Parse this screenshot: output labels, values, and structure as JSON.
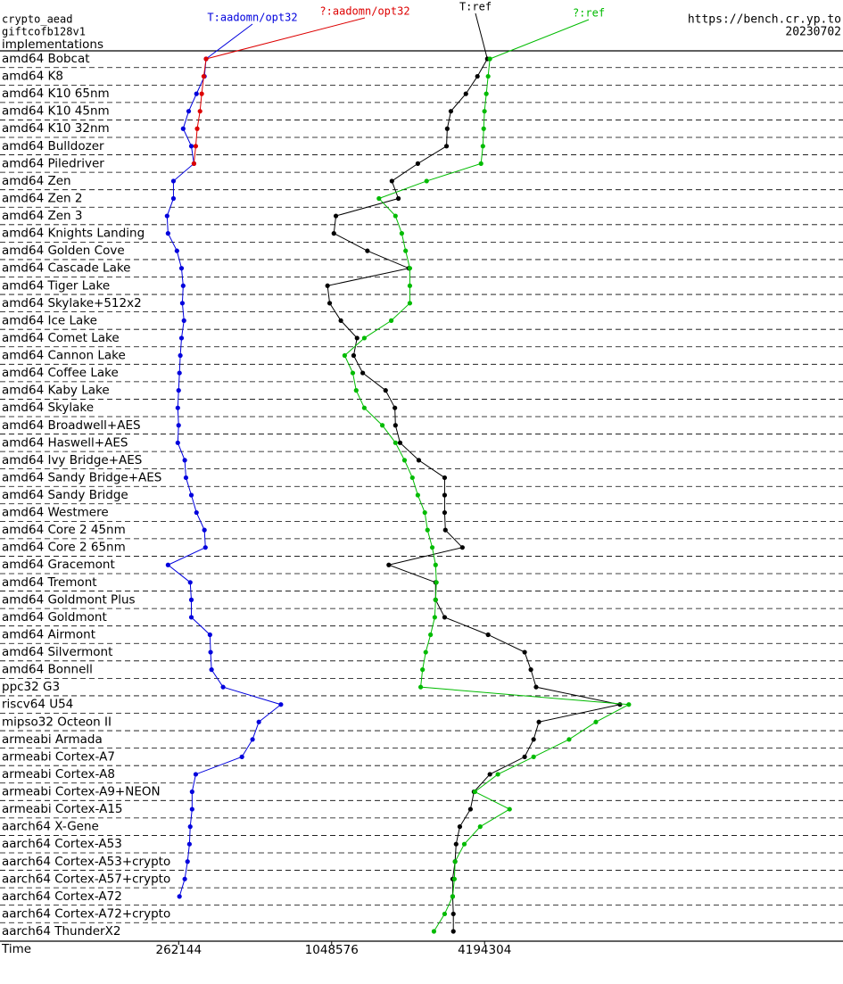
{
  "chart_data": {
    "type": "line",
    "title": "crypto_aead",
    "subtitle": "giftcofb128v1",
    "ylabel": "implementations",
    "xlabel": "Time",
    "source": "https://bench.cr.yp.to",
    "date": "20230702",
    "xscale": "log",
    "xlim": [
      51900,
      108000000
    ],
    "xticks": [
      262144,
      1048576,
      4194304
    ],
    "categories": [
      "amd64 Bobcat",
      "amd64 K8",
      "amd64 K10 65nm",
      "amd64 K10 45nm",
      "amd64 K10 32nm",
      "amd64 Bulldozer",
      "amd64 Piledriver",
      "amd64 Zen",
      "amd64 Zen 2",
      "amd64 Zen 3",
      "amd64 Knights Landing",
      "amd64 Golden Cove",
      "amd64 Cascade Lake",
      "amd64 Tiger Lake",
      "amd64 Skylake+512x2",
      "amd64 Ice Lake",
      "amd64 Comet Lake",
      "amd64 Cannon Lake",
      "amd64 Coffee Lake",
      "amd64 Kaby Lake",
      "amd64 Skylake",
      "amd64 Broadwell+AES",
      "amd64 Haswell+AES",
      "amd64 Ivy Bridge+AES",
      "amd64 Sandy Bridge+AES",
      "amd64 Sandy Bridge",
      "amd64 Westmere",
      "amd64 Core 2 45nm",
      "amd64 Core 2 65nm",
      "amd64 Gracemont",
      "amd64 Tremont",
      "amd64 Goldmont Plus",
      "amd64 Goldmont",
      "amd64 Airmont",
      "amd64 Silvermont",
      "amd64 Bonnell",
      "ppc32 G3",
      "riscv64 U54",
      "mipso32 Octeon II",
      "armeabi Armada",
      "armeabi Cortex-A7",
      "armeabi Cortex-A8",
      "armeabi Cortex-A9+NEON",
      "armeabi Cortex-A15",
      "aarch64 X-Gene",
      "aarch64 Cortex-A53",
      "aarch64 Cortex-A53+crypto",
      "aarch64 Cortex-A57+crypto",
      "aarch64 Cortex-A72",
      "aarch64 Cortex-A72+crypto",
      "aarch64 ThunderX2"
    ],
    "series": [
      {
        "name": "T:aadomn/opt32",
        "color": "#0000dd",
        "values": [
          336000,
          331000,
          308000,
          287000,
          273000,
          294000,
          301000,
          250000,
          250000,
          236000,
          238000,
          258000,
          269000,
          273000,
          271000,
          275000,
          269000,
          266000,
          264000,
          262000,
          260000,
          262000,
          260000,
          277000,
          280000,
          294000,
          308000,
          331000,
          334000,
          238000,
          291000,
          294000,
          294000,
          348000,
          350000,
          353000,
          392000,
          662000,
          542000,
          512000,
          465000,
          306000,
          296000,
          296000,
          291000,
          289000,
          284000,
          277000,
          264000,
          null,
          null
        ]
      },
      {
        "name": "?:aadomn/opt32",
        "color": "#dd0000",
        "values": [
          336000,
          329000,
          323000,
          318000,
          310000,
          306000,
          301000,
          null,
          null,
          null,
          null,
          null,
          null,
          null,
          null,
          null,
          null,
          null,
          null,
          null,
          null,
          null,
          null,
          null,
          null,
          null,
          null,
          null,
          null,
          null,
          null,
          null,
          null,
          null,
          null,
          null,
          null,
          null,
          null,
          null,
          null,
          null,
          null,
          null,
          null,
          null,
          null,
          null,
          null,
          null,
          null
        ]
      },
      {
        "name": "T:ref",
        "color": "#000000",
        "values": [
          4300000,
          3930000,
          3540000,
          3090000,
          2990000,
          2970000,
          2290000,
          1810000,
          1920000,
          1090000,
          1070000,
          1450000,
          2110000,
          1010000,
          1030000,
          1140000,
          1320000,
          1280000,
          1390000,
          1710000,
          1860000,
          1870000,
          1950000,
          2310000,
          2920000,
          2920000,
          2920000,
          2940000,
          3430000,
          1760000,
          2690000,
          2690000,
          2920000,
          4330000,
          6030000,
          6380000,
          6690000,
          14300000,
          6860000,
          6540000,
          6030000,
          4400000,
          3810000,
          3690000,
          3350000,
          3240000,
          3210000,
          3140000,
          3140000,
          3160000,
          3160000
        ]
      },
      {
        "name": "?:ref",
        "color": "#00bb00",
        "values": [
          4400000,
          4330000,
          4260000,
          4190000,
          4160000,
          4130000,
          4060000,
          2480000,
          1610000,
          1870000,
          1980000,
          2050000,
          2130000,
          2130000,
          2130000,
          1800000,
          1410000,
          1180000,
          1270000,
          1310000,
          1410000,
          1660000,
          1870000,
          2030000,
          2180000,
          2290000,
          2440000,
          2500000,
          2610000,
          2690000,
          2710000,
          2690000,
          2670000,
          2570000,
          2460000,
          2390000,
          2350000,
          15500000,
          11500000,
          9020000,
          6540000,
          4730000,
          3840000,
          5260000,
          4030000,
          3490000,
          3210000,
          3190000,
          3140000,
          2920000,
          2650000
        ]
      }
    ]
  }
}
